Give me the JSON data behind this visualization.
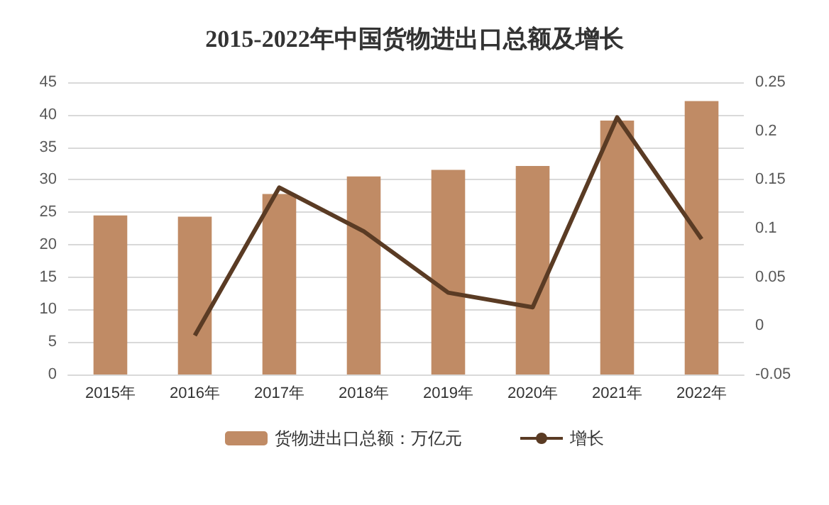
{
  "chart_data": {
    "type": "bar",
    "title": "2015-2022年中国货物进出口总额及增长",
    "categories": [
      "2015年",
      "2016年",
      "2017年",
      "2018年",
      "2019年",
      "2020年",
      "2021年",
      "2022年"
    ],
    "series": [
      {
        "name": "货物进出口总额：万亿元",
        "color": "#c08b65",
        "values": [
          24.5,
          24.3,
          27.8,
          30.5,
          31.5,
          32.1,
          39.1,
          42.1
        ]
      },
      {
        "name": "增长",
        "type": "line",
        "axis": "y2",
        "color": "#5a3b24",
        "values": [
          null,
          -0.01,
          0.142,
          0.097,
          0.034,
          0.019,
          0.214,
          0.089
        ]
      }
    ],
    "ylim": [
      0,
      45
    ],
    "yticks": [
      0,
      5,
      10,
      15,
      20,
      25,
      30,
      35,
      40,
      45
    ],
    "y2lim": [
      -0.05,
      0.25
    ],
    "y2ticks": [
      -0.05,
      0,
      0.05,
      0.1,
      0.15,
      0.2,
      0.25
    ],
    "grid": "y",
    "legend": "bottom",
    "marker": "none",
    "line_style": "solid"
  }
}
